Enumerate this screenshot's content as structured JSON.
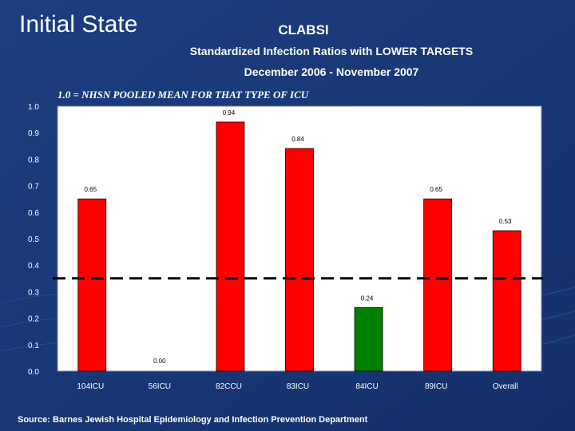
{
  "slide": {
    "title": "Initial State",
    "source": "Source: Barnes Jewish Hospital Epidemiology and Infection Prevention Department"
  },
  "colors": {
    "background": "#1a3a78",
    "plot_area": "#ffffff",
    "bar_red": "#ff0000",
    "bar_green": "#008000",
    "reference_line": "#000000"
  },
  "chart_data": {
    "type": "bar",
    "title": "CLABSI",
    "subtitle": "Standardized Infection Ratios with LOWER TARGETS",
    "date_range": "December 2006 - November 2007",
    "annotation": "1.0 = NHSN POOLED MEAN FOR THAT TYPE OF ICU",
    "categories": [
      "104ICU",
      "56ICU",
      "82CCU",
      "83ICU",
      "84ICU",
      "89ICU",
      "Overall"
    ],
    "values": [
      0.65,
      0.0,
      0.94,
      0.84,
      0.24,
      0.65,
      0.53
    ],
    "value_labels": [
      "0.65",
      "0.00",
      "0.94",
      "0.84",
      "0.24",
      "0.65",
      "0.53"
    ],
    "bar_colors": [
      "#ff0000",
      "#ff0000",
      "#ff0000",
      "#ff0000",
      "#008000",
      "#ff0000",
      "#ff0000"
    ],
    "y_ticks": [
      "0.0",
      "0.1",
      "0.2",
      "0.3",
      "0.4",
      "0.5",
      "0.6",
      "0.7",
      "0.8",
      "0.9",
      "1.0"
    ],
    "ylim": [
      0,
      1.0
    ],
    "reference_line_value": 0.35,
    "grid": false,
    "legend": "none"
  }
}
